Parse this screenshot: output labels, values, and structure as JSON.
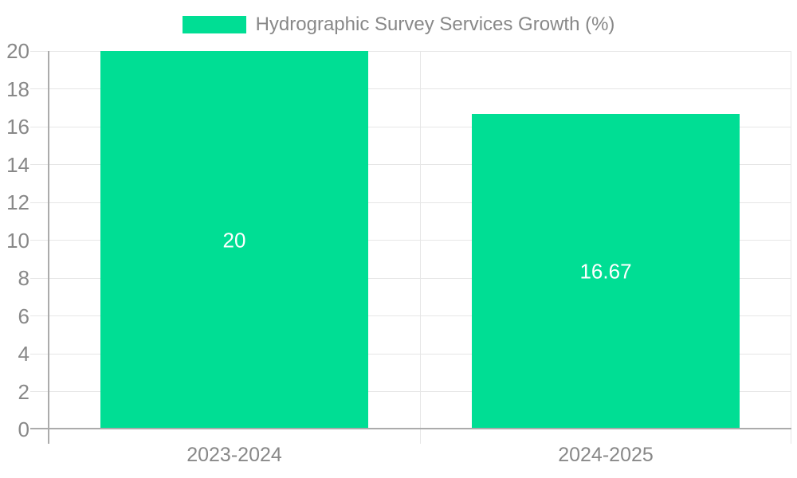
{
  "legend": {
    "label": "Hydrographic Survey Services Growth (%)"
  },
  "chart_data": {
    "type": "bar",
    "title": "",
    "series_name": "Hydrographic Survey Services Growth (%)",
    "categories": [
      "2023-2024",
      "2024-2025"
    ],
    "values": [
      20,
      16.67
    ],
    "value_labels": [
      "20",
      "16.67"
    ],
    "xlabel": "",
    "ylabel": "",
    "ylim": [
      0,
      20
    ],
    "ytick_step": 2,
    "yticks": [
      0,
      2,
      4,
      6,
      8,
      10,
      12,
      14,
      16,
      18,
      20
    ],
    "grid": true,
    "legend_position": "top-center",
    "bar_width_fraction": 0.72,
    "colors": {
      "bar": "#00DE94",
      "value_label": "#ffffff",
      "grid": "#e6e6e6",
      "axis": "#ababab",
      "tick_label": "#888888",
      "legend_label": "#888888",
      "background": "#ffffff"
    }
  }
}
